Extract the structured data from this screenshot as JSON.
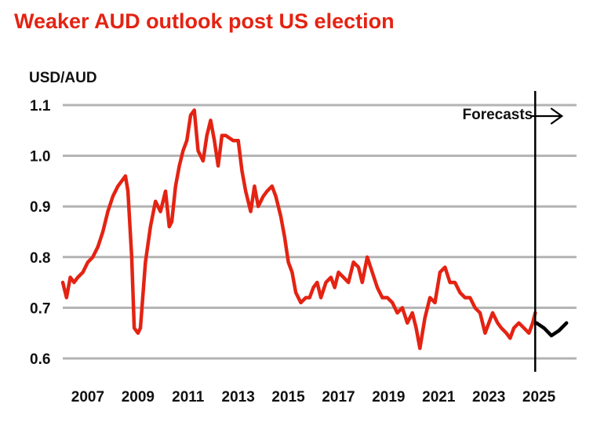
{
  "chart_data": {
    "type": "line",
    "title": "Weaker AUD outlook post US election",
    "ylabel": "USD/AUD",
    "xlabel": "",
    "ylim": [
      0.6,
      1.1
    ],
    "yticks": [
      "0.6",
      "0.7",
      "0.8",
      "0.9",
      "1.0",
      "1.1"
    ],
    "xlim": [
      2006.0,
      2026.5
    ],
    "xticks": [
      {
        "value": 2007,
        "label": "2007"
      },
      {
        "value": 2009,
        "label": "2009"
      },
      {
        "value": 2011,
        "label": "2011"
      },
      {
        "value": 2013,
        "label": "2013"
      },
      {
        "value": 2015,
        "label": "2015"
      },
      {
        "value": 2017,
        "label": "2017"
      },
      {
        "value": 2019,
        "label": "2019"
      },
      {
        "value": 2021,
        "label": "2021"
      },
      {
        "value": 2023,
        "label": "2023"
      },
      {
        "value": 2025,
        "label": "2025"
      }
    ],
    "grid": true,
    "colors": {
      "title": "#e42313",
      "actual": "#e42313",
      "forecast": "#000000",
      "grid": "#b3b3b3"
    },
    "annotation": {
      "text": "Forecasts",
      "divider_x": 2024.85
    },
    "series": [
      {
        "role": "actual",
        "x": [
          2006.0,
          2006.15,
          2006.3,
          2006.45,
          2006.6,
          2006.8,
          2007.0,
          2007.2,
          2007.4,
          2007.6,
          2007.8,
          2008.0,
          2008.2,
          2008.35,
          2008.5,
          2008.6,
          2008.75,
          2008.85,
          2009.0,
          2009.1,
          2009.3,
          2009.5,
          2009.7,
          2009.9,
          2010.1,
          2010.25,
          2010.35,
          2010.5,
          2010.65,
          2010.8,
          2010.95,
          2011.1,
          2011.25,
          2011.4,
          2011.6,
          2011.75,
          2011.9,
          2012.05,
          2012.2,
          2012.35,
          2012.5,
          2012.65,
          2012.8,
          2013.0,
          2013.15,
          2013.3,
          2013.5,
          2013.65,
          2013.8,
          2014.0,
          2014.15,
          2014.35,
          2014.5,
          2014.7,
          2014.85,
          2015.0,
          2015.15,
          2015.3,
          2015.5,
          2015.7,
          2015.85,
          2016.0,
          2016.15,
          2016.3,
          2016.5,
          2016.7,
          2016.85,
          2017.0,
          2017.2,
          2017.4,
          2017.6,
          2017.8,
          2017.95,
          2018.15,
          2018.35,
          2018.55,
          2018.75,
          2018.95,
          2019.15,
          2019.35,
          2019.55,
          2019.75,
          2019.95,
          2020.1,
          2020.25,
          2020.45,
          2020.65,
          2020.85,
          2021.05,
          2021.25,
          2021.45,
          2021.65,
          2021.85,
          2022.05,
          2022.25,
          2022.45,
          2022.65,
          2022.85,
          2023.0,
          2023.15,
          2023.35,
          2023.5,
          2023.7,
          2023.85,
          2024.0,
          2024.2,
          2024.4,
          2024.6,
          2024.75,
          2024.85
        ],
        "y": [
          0.75,
          0.72,
          0.76,
          0.75,
          0.76,
          0.77,
          0.79,
          0.8,
          0.82,
          0.85,
          0.89,
          0.92,
          0.94,
          0.95,
          0.96,
          0.93,
          0.8,
          0.66,
          0.65,
          0.66,
          0.79,
          0.86,
          0.91,
          0.89,
          0.93,
          0.86,
          0.87,
          0.94,
          0.98,
          1.01,
          1.03,
          1.08,
          1.09,
          1.01,
          0.99,
          1.04,
          1.07,
          1.03,
          0.98,
          1.04,
          1.04,
          1.035,
          1.03,
          1.03,
          0.97,
          0.93,
          0.89,
          0.94,
          0.9,
          0.92,
          0.93,
          0.94,
          0.92,
          0.88,
          0.84,
          0.79,
          0.77,
          0.73,
          0.71,
          0.72,
          0.72,
          0.74,
          0.75,
          0.72,
          0.75,
          0.76,
          0.74,
          0.77,
          0.76,
          0.75,
          0.79,
          0.78,
          0.75,
          0.8,
          0.77,
          0.74,
          0.72,
          0.72,
          0.71,
          0.69,
          0.7,
          0.67,
          0.69,
          0.66,
          0.62,
          0.68,
          0.72,
          0.71,
          0.77,
          0.78,
          0.75,
          0.75,
          0.73,
          0.72,
          0.72,
          0.7,
          0.69,
          0.65,
          0.67,
          0.69,
          0.67,
          0.66,
          0.65,
          0.64,
          0.66,
          0.67,
          0.66,
          0.65,
          0.67,
          0.69
        ]
      },
      {
        "role": "forecast",
        "x": [
          2024.9,
          2025.2,
          2025.5,
          2025.8,
          2026.1
        ],
        "y": [
          0.67,
          0.66,
          0.645,
          0.655,
          0.67
        ]
      }
    ]
  }
}
